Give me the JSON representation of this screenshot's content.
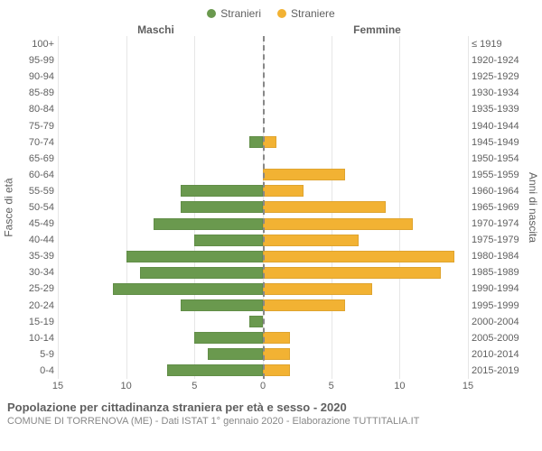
{
  "legend": {
    "male_label": "Stranieri",
    "female_label": "Straniere",
    "male_color": "#6a994e",
    "female_color": "#f2b233"
  },
  "column_titles": {
    "left": "Maschi",
    "right": "Femmine"
  },
  "axis_labels": {
    "left": "Fasce di età",
    "right": "Anni di nascita"
  },
  "pyramid": {
    "type": "population_pyramid",
    "x_max": 15,
    "x_ticks": [
      15,
      10,
      5,
      0,
      5,
      10,
      15
    ],
    "grid_color": "#e6e6e6",
    "center_dash_color": "#888888",
    "background_color": "#ffffff",
    "bar_colors": {
      "male": "#6a994e",
      "female": "#f2b233"
    },
    "rows": [
      {
        "age": "100+",
        "birth": "≤ 1919",
        "m": 0,
        "f": 0
      },
      {
        "age": "95-99",
        "birth": "1920-1924",
        "m": 0,
        "f": 0
      },
      {
        "age": "90-94",
        "birth": "1925-1929",
        "m": 0,
        "f": 0
      },
      {
        "age": "85-89",
        "birth": "1930-1934",
        "m": 0,
        "f": 0
      },
      {
        "age": "80-84",
        "birth": "1935-1939",
        "m": 0,
        "f": 0
      },
      {
        "age": "75-79",
        "birth": "1940-1944",
        "m": 0,
        "f": 0
      },
      {
        "age": "70-74",
        "birth": "1945-1949",
        "m": 1,
        "f": 1
      },
      {
        "age": "65-69",
        "birth": "1950-1954",
        "m": 0,
        "f": 0
      },
      {
        "age": "60-64",
        "birth": "1955-1959",
        "m": 0,
        "f": 6
      },
      {
        "age": "55-59",
        "birth": "1960-1964",
        "m": 6,
        "f": 3
      },
      {
        "age": "50-54",
        "birth": "1965-1969",
        "m": 6,
        "f": 9
      },
      {
        "age": "45-49",
        "birth": "1970-1974",
        "m": 8,
        "f": 11
      },
      {
        "age": "40-44",
        "birth": "1975-1979",
        "m": 5,
        "f": 7
      },
      {
        "age": "35-39",
        "birth": "1980-1984",
        "m": 10,
        "f": 14
      },
      {
        "age": "30-34",
        "birth": "1985-1989",
        "m": 9,
        "f": 13
      },
      {
        "age": "25-29",
        "birth": "1990-1994",
        "m": 11,
        "f": 8
      },
      {
        "age": "20-24",
        "birth": "1995-1999",
        "m": 6,
        "f": 6
      },
      {
        "age": "15-19",
        "birth": "2000-2004",
        "m": 1,
        "f": 0
      },
      {
        "age": "10-14",
        "birth": "2005-2009",
        "m": 5,
        "f": 2
      },
      {
        "age": "5-9",
        "birth": "2010-2014",
        "m": 4,
        "f": 2
      },
      {
        "age": "0-4",
        "birth": "2015-2019",
        "m": 7,
        "f": 2
      }
    ]
  },
  "footer": {
    "title": "Popolazione per cittadinanza straniera per età e sesso - 2020",
    "subtitle": "COMUNE DI TORRENOVA (ME) - Dati ISTAT 1° gennaio 2020 - Elaborazione TUTTITALIA.IT"
  },
  "typography": {
    "tick_fontsize": 11,
    "label_fontsize": 12,
    "title_fontsize": 13,
    "subtitle_fontsize": 11,
    "tick_color": "#606060",
    "subtitle_color": "#888888"
  }
}
